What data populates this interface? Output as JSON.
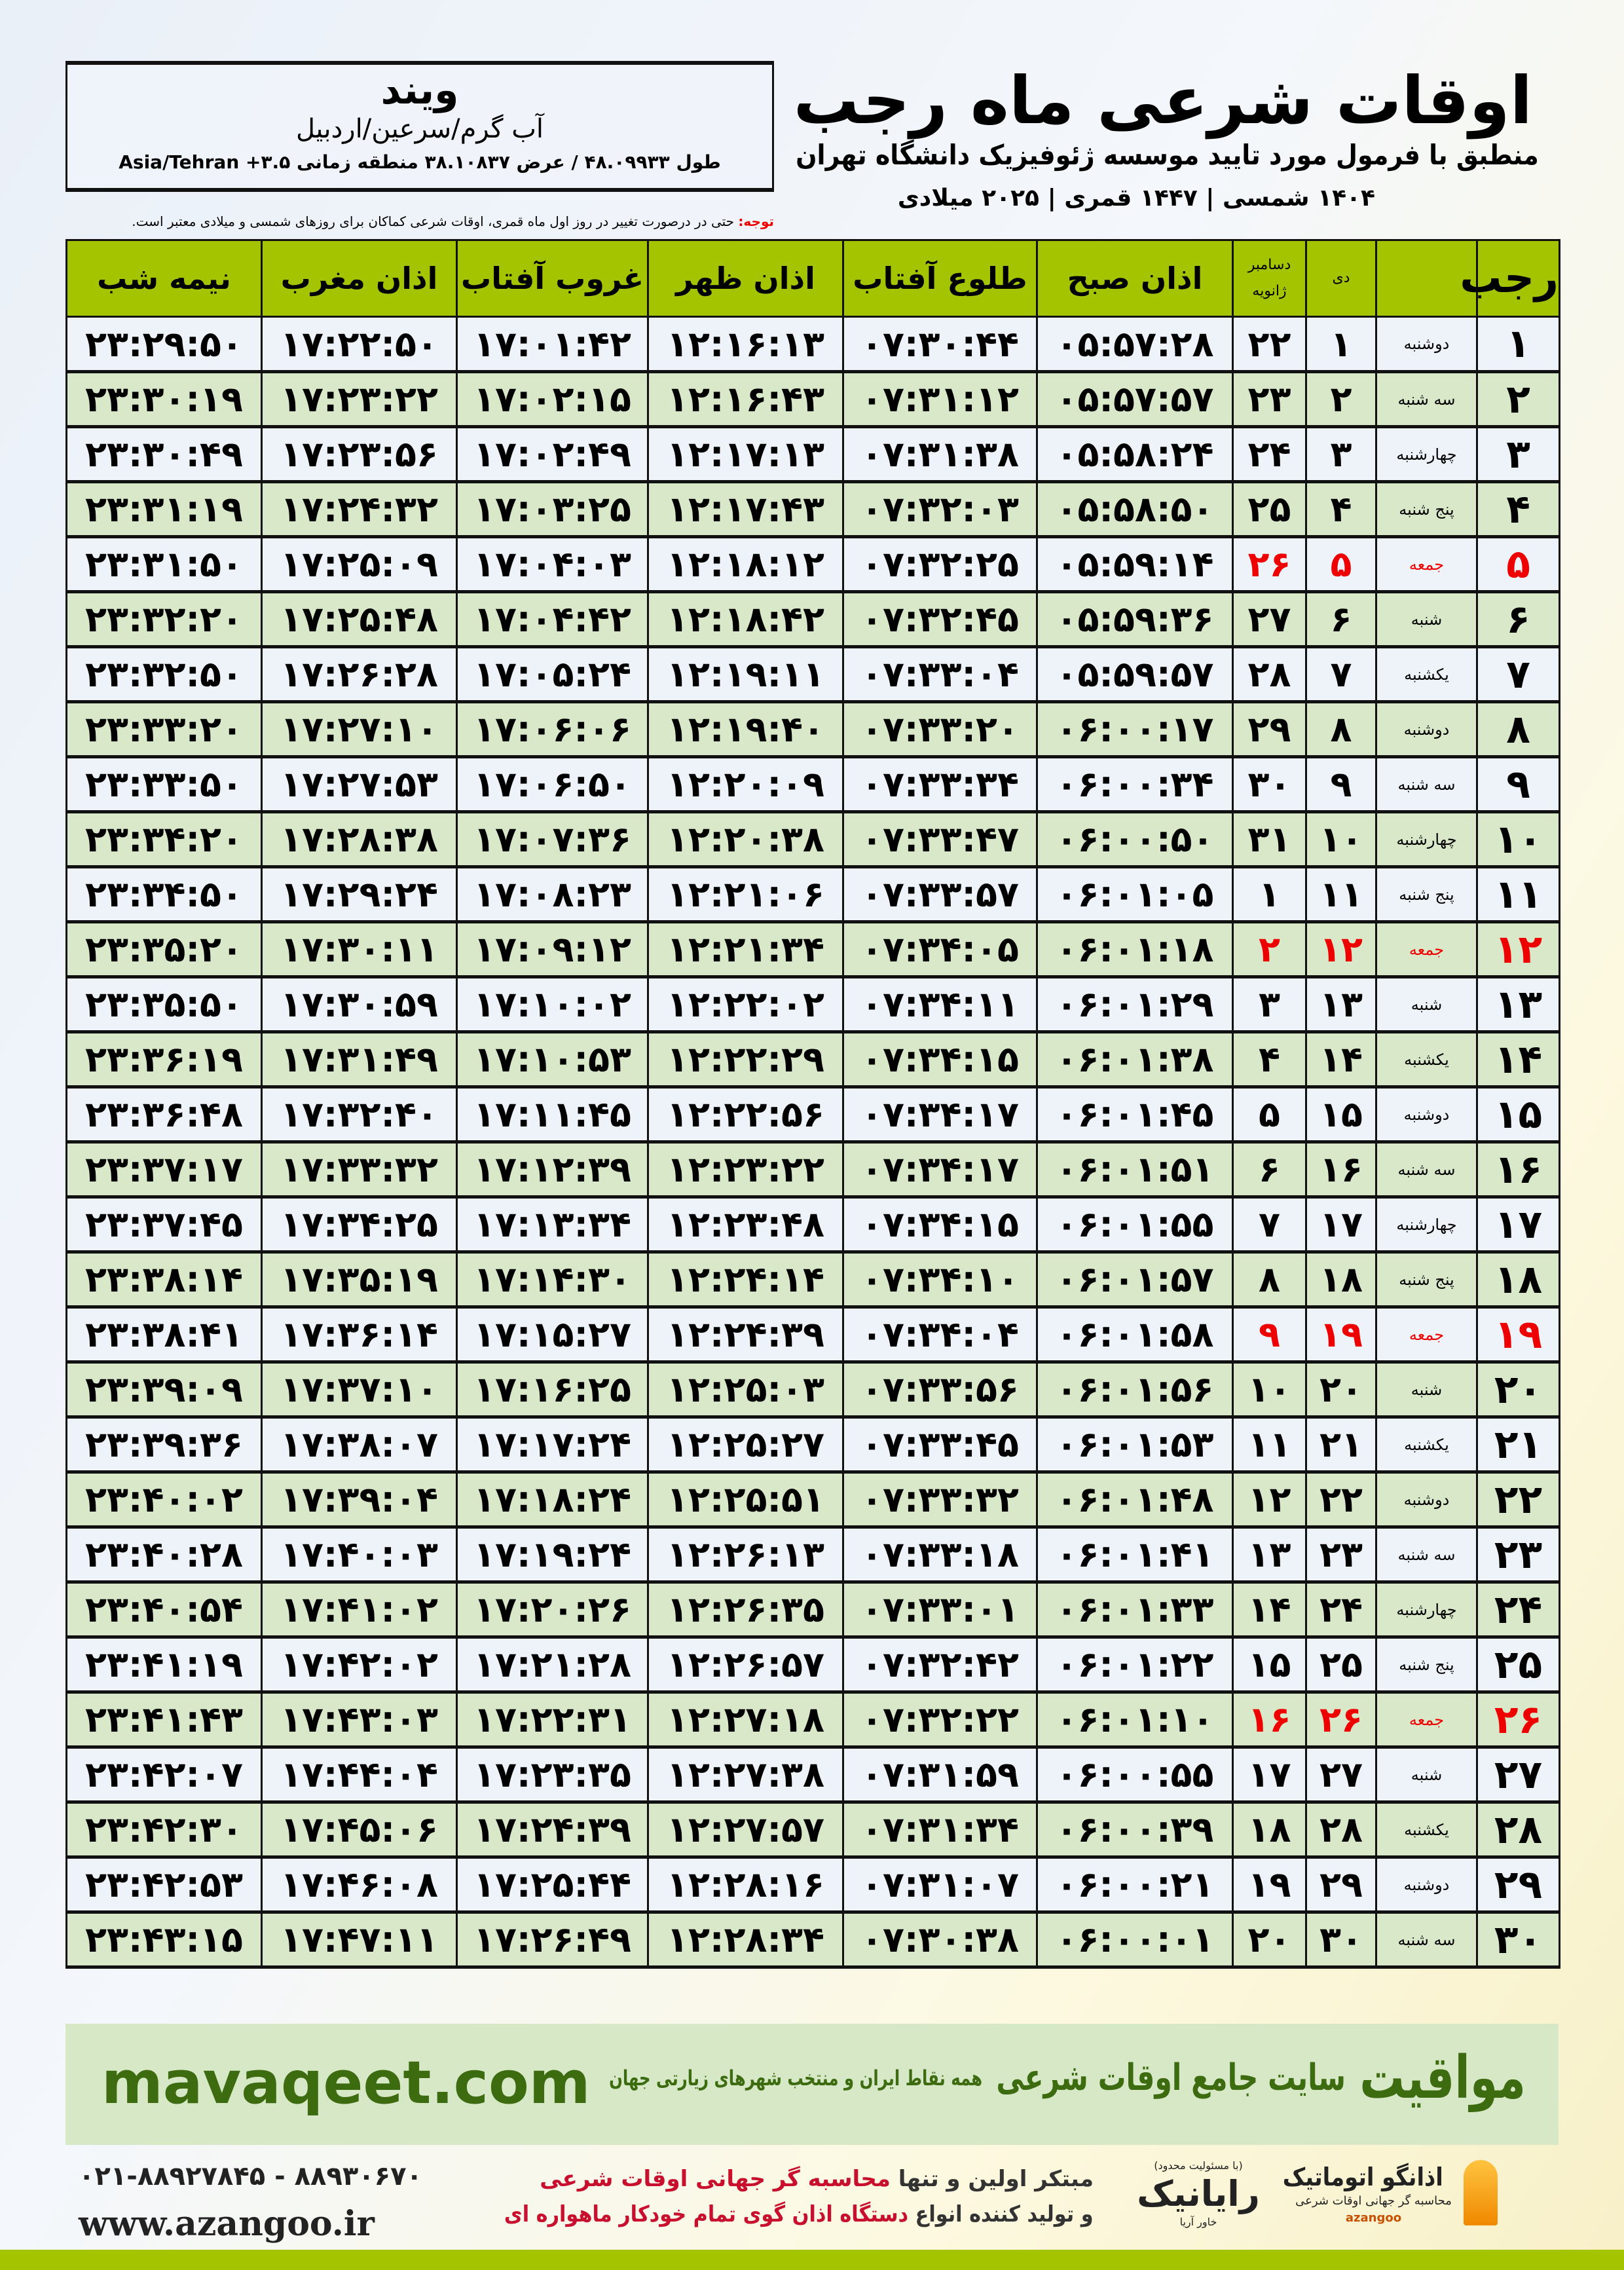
{
  "header": {
    "city": "ویند",
    "region": "آب گرم/سرعین/اردبیل",
    "coords": "طول ۴۸.۰۹۹۳۳ / عرض ۳۸.۱۰۸۳۷ منطقه زمانی ۳.۵+ Asia/Tehran",
    "title": "اوقات شرعی ماه رجب",
    "subtitle": "منطبق با فرمول مورد تایید موسسه ژئوفیزیک دانشگاه تهران",
    "dateline": "۱۴۰۴ شمسی | ۱۴۴۷ قمری | ۲۰۲۵ میلادی",
    "note_label": "توجه:",
    "note_text": " حتی در درصورت تغییر در روز اول ماه قمری، اوقات شرعی کماکان برای روزهای شمسی و میلادی معتبر است."
  },
  "table": {
    "headers": {
      "rajab": "رجب",
      "dey": "دی",
      "jan_top": "دسامبر",
      "jan_bottom": "ژانویه",
      "sobh": "اذان صبح",
      "tolu": "طلوع آفتاب",
      "zohr": "اذان ظهر",
      "ghorub": "غروب آفتاب",
      "maghrib": "اذان مغرب",
      "nimeh": "نیمه شب"
    },
    "friday_color": "#e00000",
    "rows": [
      [
        "۱",
        "دوشنبه",
        "۱",
        "۲۲",
        "۰۵:۵۷:۲۸",
        "۰۷:۳۰:۴۴",
        "۱۲:۱۶:۱۳",
        "۱۷:۰۱:۴۲",
        "۱۷:۲۲:۵۰",
        "۲۳:۲۹:۵۰"
      ],
      [
        "۲",
        "سه شنبه",
        "۲",
        "۲۳",
        "۰۵:۵۷:۵۷",
        "۰۷:۳۱:۱۲",
        "۱۲:۱۶:۴۳",
        "۱۷:۰۲:۱۵",
        "۱۷:۲۳:۲۲",
        "۲۳:۳۰:۱۹"
      ],
      [
        "۳",
        "چهارشنبه",
        "۳",
        "۲۴",
        "۰۵:۵۸:۲۴",
        "۰۷:۳۱:۳۸",
        "۱۲:۱۷:۱۳",
        "۱۷:۰۲:۴۹",
        "۱۷:۲۳:۵۶",
        "۲۳:۳۰:۴۹"
      ],
      [
        "۴",
        "پنج شنبه",
        "۴",
        "۲۵",
        "۰۵:۵۸:۵۰",
        "۰۷:۳۲:۰۳",
        "۱۲:۱۷:۴۳",
        "۱۷:۰۳:۲۵",
        "۱۷:۲۴:۳۲",
        "۲۳:۳۱:۱۹"
      ],
      [
        "۵",
        "جمعه",
        "۵",
        "۲۶",
        "۰۵:۵۹:۱۴",
        "۰۷:۳۲:۲۵",
        "۱۲:۱۸:۱۲",
        "۱۷:۰۴:۰۳",
        "۱۷:۲۵:۰۹",
        "۲۳:۳۱:۵۰"
      ],
      [
        "۶",
        "شنبه",
        "۶",
        "۲۷",
        "۰۵:۵۹:۳۶",
        "۰۷:۳۲:۴۵",
        "۱۲:۱۸:۴۲",
        "۱۷:۰۴:۴۲",
        "۱۷:۲۵:۴۸",
        "۲۳:۳۲:۲۰"
      ],
      [
        "۷",
        "یکشنبه",
        "۷",
        "۲۸",
        "۰۵:۵۹:۵۷",
        "۰۷:۳۳:۰۴",
        "۱۲:۱۹:۱۱",
        "۱۷:۰۵:۲۴",
        "۱۷:۲۶:۲۸",
        "۲۳:۳۲:۵۰"
      ],
      [
        "۸",
        "دوشنبه",
        "۸",
        "۲۹",
        "۰۶:۰۰:۱۷",
        "۰۷:۳۳:۲۰",
        "۱۲:۱۹:۴۰",
        "۱۷:۰۶:۰۶",
        "۱۷:۲۷:۱۰",
        "۲۳:۳۳:۲۰"
      ],
      [
        "۹",
        "سه شنبه",
        "۹",
        "۳۰",
        "۰۶:۰۰:۳۴",
        "۰۷:۳۳:۳۴",
        "۱۲:۲۰:۰۹",
        "۱۷:۰۶:۵۰",
        "۱۷:۲۷:۵۳",
        "۲۳:۳۳:۵۰"
      ],
      [
        "۱۰",
        "چهارشنبه",
        "۱۰",
        "۳۱",
        "۰۶:۰۰:۵۰",
        "۰۷:۳۳:۴۷",
        "۱۲:۲۰:۳۸",
        "۱۷:۰۷:۳۶",
        "۱۷:۲۸:۳۸",
        "۲۳:۳۴:۲۰"
      ],
      [
        "۱۱",
        "پنج شنبه",
        "۱۱",
        "۱",
        "۰۶:۰۱:۰۵",
        "۰۷:۳۳:۵۷",
        "۱۲:۲۱:۰۶",
        "۱۷:۰۸:۲۳",
        "۱۷:۲۹:۲۴",
        "۲۳:۳۴:۵۰"
      ],
      [
        "۱۲",
        "جمعه",
        "۱۲",
        "۲",
        "۰۶:۰۱:۱۸",
        "۰۷:۳۴:۰۵",
        "۱۲:۲۱:۳۴",
        "۱۷:۰۹:۱۲",
        "۱۷:۳۰:۱۱",
        "۲۳:۳۵:۲۰"
      ],
      [
        "۱۳",
        "شنبه",
        "۱۳",
        "۳",
        "۰۶:۰۱:۲۹",
        "۰۷:۳۴:۱۱",
        "۱۲:۲۲:۰۲",
        "۱۷:۱۰:۰۲",
        "۱۷:۳۰:۵۹",
        "۲۳:۳۵:۵۰"
      ],
      [
        "۱۴",
        "یکشنبه",
        "۱۴",
        "۴",
        "۰۶:۰۱:۳۸",
        "۰۷:۳۴:۱۵",
        "۱۲:۲۲:۲۹",
        "۱۷:۱۰:۵۳",
        "۱۷:۳۱:۴۹",
        "۲۳:۳۶:۱۹"
      ],
      [
        "۱۵",
        "دوشنبه",
        "۱۵",
        "۵",
        "۰۶:۰۱:۴۵",
        "۰۷:۳۴:۱۷",
        "۱۲:۲۲:۵۶",
        "۱۷:۱۱:۴۵",
        "۱۷:۳۲:۴۰",
        "۲۳:۳۶:۴۸"
      ],
      [
        "۱۶",
        "سه شنبه",
        "۱۶",
        "۶",
        "۰۶:۰۱:۵۱",
        "۰۷:۳۴:۱۷",
        "۱۲:۲۳:۲۲",
        "۱۷:۱۲:۳۹",
        "۱۷:۳۳:۳۲",
        "۲۳:۳۷:۱۷"
      ],
      [
        "۱۷",
        "چهارشنبه",
        "۱۷",
        "۷",
        "۰۶:۰۱:۵۵",
        "۰۷:۳۴:۱۵",
        "۱۲:۲۳:۴۸",
        "۱۷:۱۳:۳۴",
        "۱۷:۳۴:۲۵",
        "۲۳:۳۷:۴۵"
      ],
      [
        "۱۸",
        "پنج شنبه",
        "۱۸",
        "۸",
        "۰۶:۰۱:۵۷",
        "۰۷:۳۴:۱۰",
        "۱۲:۲۴:۱۴",
        "۱۷:۱۴:۳۰",
        "۱۷:۳۵:۱۹",
        "۲۳:۳۸:۱۴"
      ],
      [
        "۱۹",
        "جمعه",
        "۱۹",
        "۹",
        "۰۶:۰۱:۵۸",
        "۰۷:۳۴:۰۴",
        "۱۲:۲۴:۳۹",
        "۱۷:۱۵:۲۷",
        "۱۷:۳۶:۱۴",
        "۲۳:۳۸:۴۱"
      ],
      [
        "۲۰",
        "شنبه",
        "۲۰",
        "۱۰",
        "۰۶:۰۱:۵۶",
        "۰۷:۳۳:۵۶",
        "۱۲:۲۵:۰۳",
        "۱۷:۱۶:۲۵",
        "۱۷:۳۷:۱۰",
        "۲۳:۳۹:۰۹"
      ],
      [
        "۲۱",
        "یکشنبه",
        "۲۱",
        "۱۱",
        "۰۶:۰۱:۵۳",
        "۰۷:۳۳:۴۵",
        "۱۲:۲۵:۲۷",
        "۱۷:۱۷:۲۴",
        "۱۷:۳۸:۰۷",
        "۲۳:۳۹:۳۶"
      ],
      [
        "۲۲",
        "دوشنبه",
        "۲۲",
        "۱۲",
        "۰۶:۰۱:۴۸",
        "۰۷:۳۳:۳۲",
        "۱۲:۲۵:۵۱",
        "۱۷:۱۸:۲۴",
        "۱۷:۳۹:۰۴",
        "۲۳:۴۰:۰۲"
      ],
      [
        "۲۳",
        "سه شنبه",
        "۲۳",
        "۱۳",
        "۰۶:۰۱:۴۱",
        "۰۷:۳۳:۱۸",
        "۱۲:۲۶:۱۳",
        "۱۷:۱۹:۲۴",
        "۱۷:۴۰:۰۳",
        "۲۳:۴۰:۲۸"
      ],
      [
        "۲۴",
        "چهارشنبه",
        "۲۴",
        "۱۴",
        "۰۶:۰۱:۳۳",
        "۰۷:۳۳:۰۱",
        "۱۲:۲۶:۳۵",
        "۱۷:۲۰:۲۶",
        "۱۷:۴۱:۰۲",
        "۲۳:۴۰:۵۴"
      ],
      [
        "۲۵",
        "پنج شنبه",
        "۲۵",
        "۱۵",
        "۰۶:۰۱:۲۲",
        "۰۷:۳۲:۴۲",
        "۱۲:۲۶:۵۷",
        "۱۷:۲۱:۲۸",
        "۱۷:۴۲:۰۲",
        "۲۳:۴۱:۱۹"
      ],
      [
        "۲۶",
        "جمعه",
        "۲۶",
        "۱۶",
        "۰۶:۰۱:۱۰",
        "۰۷:۳۲:۲۲",
        "۱۲:۲۷:۱۸",
        "۱۷:۲۲:۳۱",
        "۱۷:۴۳:۰۳",
        "۲۳:۴۱:۴۳"
      ],
      [
        "۲۷",
        "شنبه",
        "۲۷",
        "۱۷",
        "۰۶:۰۰:۵۵",
        "۰۷:۳۱:۵۹",
        "۱۲:۲۷:۳۸",
        "۱۷:۲۳:۳۵",
        "۱۷:۴۴:۰۴",
        "۲۳:۴۲:۰۷"
      ],
      [
        "۲۸",
        "یکشنبه",
        "۲۸",
        "۱۸",
        "۰۶:۰۰:۳۹",
        "۰۷:۳۱:۳۴",
        "۱۲:۲۷:۵۷",
        "۱۷:۲۴:۳۹",
        "۱۷:۴۵:۰۶",
        "۲۳:۴۲:۳۰"
      ],
      [
        "۲۹",
        "دوشنبه",
        "۲۹",
        "۱۹",
        "۰۶:۰۰:۲۱",
        "۰۷:۳۱:۰۷",
        "۱۲:۲۸:۱۶",
        "۱۷:۲۵:۴۴",
        "۱۷:۴۶:۰۸",
        "۲۳:۴۲:۵۳"
      ],
      [
        "۳۰",
        "سه شنبه",
        "۳۰",
        "۲۰",
        "۰۶:۰۰:۰۱",
        "۰۷:۳۰:۳۸",
        "۱۲:۲۸:۳۴",
        "۱۷:۲۶:۴۹",
        "۱۷:۴۷:۱۱",
        "۲۳:۴۳:۱۵"
      ]
    ]
  },
  "footer": {
    "brand": "مواقیت",
    "brand_tagline": "سایت جامع اوقات شرعی",
    "brand_desc": "همه نقاط ایران و منتخب شهرهای زیارتی جهان",
    "url": "mavaqeet.com",
    "phone": "۰۲۱-۸۸۹۲۷۸۴۵ - ۸۸۹۳۰۶۷۰",
    "website": "www.azangoo.ir",
    "ad_line1_a": "مبتکر اولین و تنها ",
    "ad_line1_b": "محاسبه گر جهانی اوقات شرعی",
    "ad_line2_a": "و تولید کننده انواع ",
    "ad_line2_b": "دستگاه اذان گوی تمام خودکار ماهواره ای",
    "logo1_name": "رایانیک",
    "logo1_sub": "خاور آریا",
    "logo1_note": "(با مسئولیت محدود)",
    "logo2_name": "اذانگو اتوماتیک",
    "logo2_sub": "محاسبه گر جهانی اوقات شرعی",
    "logo2_latin": "azangoo",
    "green": "#a5c400",
    "dark_green": "#3c6b10"
  }
}
